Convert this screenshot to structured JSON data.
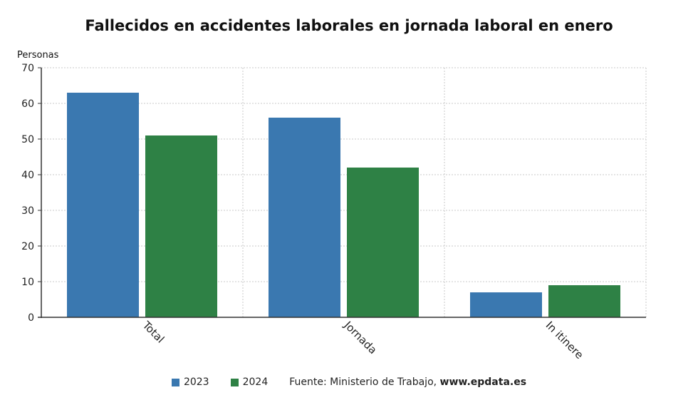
{
  "chart_data": {
    "type": "bar",
    "title": "Fallecidos en accidentes laborales en jornada laboral en enero",
    "ylabel": "Personas",
    "xlabel": "",
    "categories": [
      "Total",
      "Jornada",
      "In itinere"
    ],
    "series": [
      {
        "name": "2023",
        "color": "#3a78b0",
        "values": [
          63,
          56,
          7
        ]
      },
      {
        "name": "2024",
        "color": "#2e8145",
        "values": [
          51,
          42,
          9
        ]
      }
    ],
    "ylim": [
      0,
      70
    ],
    "yticks": [
      "0",
      "10",
      "20",
      "30",
      "40",
      "50",
      "60",
      "70"
    ],
    "grid": true,
    "legend_position": "bottom"
  },
  "footer": {
    "source_prefix": "Fuente: Ministerio de Trabajo, ",
    "source_site": "www.epdata.es"
  }
}
